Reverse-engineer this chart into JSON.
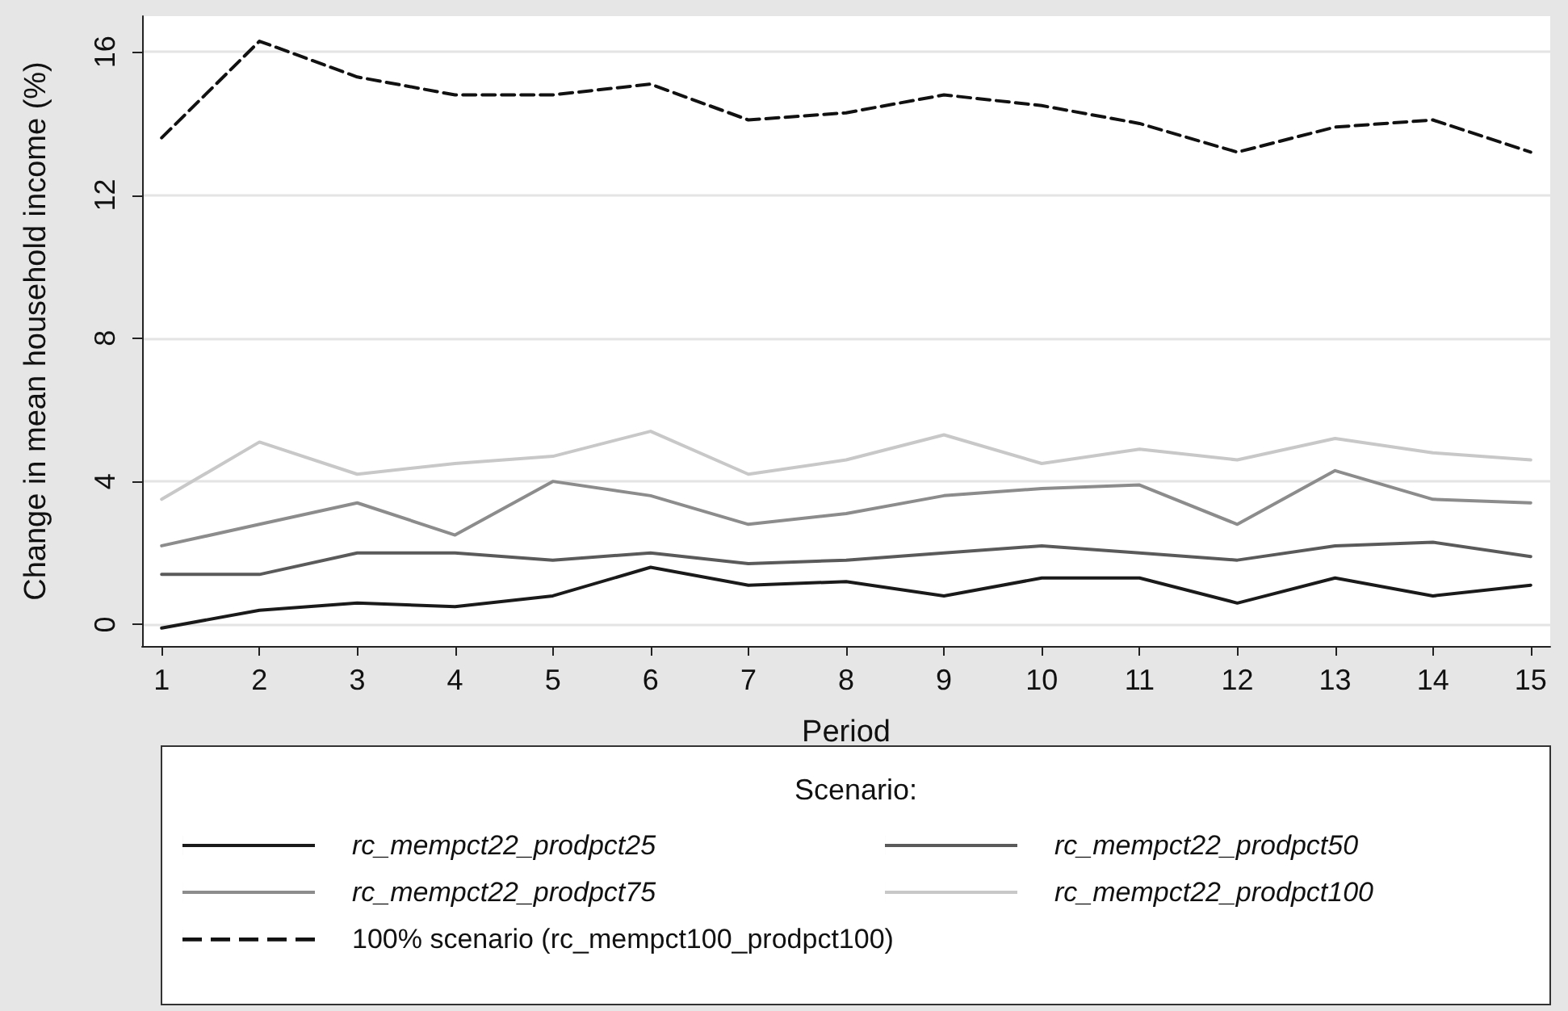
{
  "chart_data": {
    "type": "line",
    "xlabel": "Period",
    "ylabel": "Change in mean household income (%)",
    "x": [
      1,
      2,
      3,
      4,
      5,
      6,
      7,
      8,
      9,
      10,
      11,
      12,
      13,
      14,
      15
    ],
    "xlim": [
      0.8,
      15.2
    ],
    "xticks": [
      1,
      2,
      3,
      4,
      5,
      6,
      7,
      8,
      9,
      10,
      11,
      12,
      13,
      14,
      15
    ],
    "ylim": [
      -0.6,
      17
    ],
    "yticks": [
      0,
      4,
      8,
      12,
      16
    ],
    "grid": "y",
    "legend": "bottom",
    "legend_title": "Scenario:",
    "marker": "none",
    "series": [
      {
        "name": "rc_mempct22_prodpct25",
        "color": "#1a1a1a",
        "line_style": "solid",
        "values": [
          -0.1,
          0.4,
          0.6,
          0.5,
          0.8,
          1.6,
          1.1,
          1.2,
          0.8,
          1.3,
          1.3,
          0.6,
          1.3,
          0.8,
          1.1
        ]
      },
      {
        "name": "rc_mempct22_prodpct50",
        "color": "#5a5a5a",
        "line_style": "solid",
        "values": [
          1.4,
          1.4,
          2.0,
          2.0,
          1.8,
          2.0,
          1.7,
          1.8,
          2.0,
          2.2,
          2.0,
          1.8,
          2.2,
          2.3,
          1.9
        ]
      },
      {
        "name": "rc_mempct22_prodpct75",
        "color": "#8c8c8c",
        "line_style": "solid",
        "values": [
          2.2,
          2.8,
          3.4,
          2.5,
          4.0,
          3.6,
          2.8,
          3.1,
          3.6,
          3.8,
          3.9,
          2.8,
          4.3,
          3.5,
          3.4
        ]
      },
      {
        "name": "rc_mempct22_prodpct100",
        "color": "#c8c8c8",
        "line_style": "solid",
        "values": [
          3.5,
          5.1,
          4.2,
          4.5,
          4.7,
          5.4,
          4.2,
          4.6,
          5.3,
          4.5,
          4.9,
          4.6,
          5.2,
          4.8,
          4.6
        ]
      },
      {
        "name": "100% scenario (rc_mempct100_prodpct100)",
        "color": "#111111",
        "line_style": "dashed",
        "values": [
          13.6,
          16.3,
          15.3,
          14.8,
          14.8,
          15.1,
          14.1,
          14.3,
          14.8,
          14.5,
          14.0,
          13.2,
          13.9,
          14.1,
          13.2
        ]
      }
    ]
  }
}
